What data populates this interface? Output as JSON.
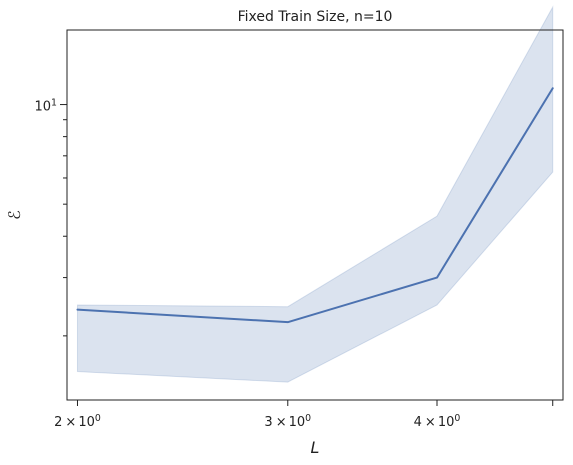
{
  "chart_data": {
    "type": "line",
    "title": "Fixed Train Size, n=10",
    "xlabel": "L",
    "ylabel": "ℰ",
    "x_scale": "log",
    "y_scale": "log",
    "grid": false,
    "legend": "none",
    "xlim": [
      1.96,
      5.1
    ],
    "ylim": [
      1.28,
      16.8
    ],
    "x_ticks": [
      {
        "value": 2,
        "base": "2",
        "exp": "0"
      },
      {
        "value": 3,
        "base": "3",
        "exp": "0"
      },
      {
        "value": 4,
        "base": "4",
        "exp": "0"
      },
      {
        "value": 5,
        "base": "",
        "exp": ""
      }
    ],
    "y_major_ticks": [
      {
        "value": 10,
        "base": "10",
        "exp": "1"
      }
    ],
    "y_minor_ticks": [
      2,
      3,
      4,
      5,
      6,
      7,
      8,
      9
    ],
    "x_minor_ticks": [],
    "series": [
      {
        "color": "#4c72b0",
        "x": [
          2,
          3,
          4,
          5
        ],
        "y": [
          2.4,
          2.2,
          3.0,
          11.2
        ],
        "ci_low": [
          1.56,
          1.45,
          2.48,
          6.25
        ],
        "ci_high": [
          2.48,
          2.45,
          4.6,
          19.7
        ]
      }
    ]
  }
}
